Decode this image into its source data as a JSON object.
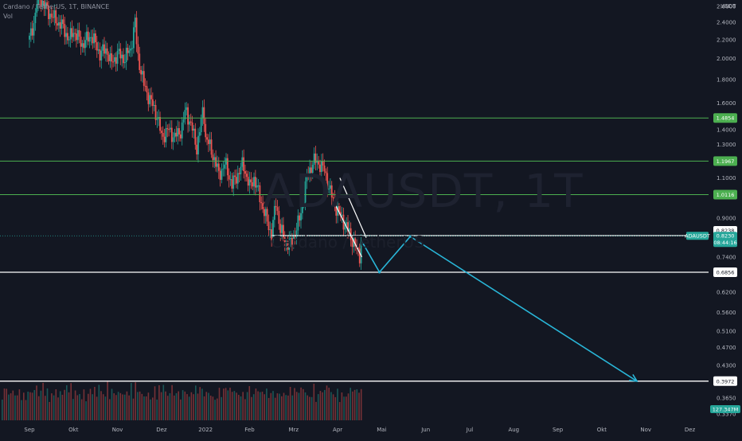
{
  "header": {
    "symbol_line": "Cardano / TetherUS, 1T, BINANCE",
    "volume_label": "Vol"
  },
  "watermark": {
    "ticker": "ADAUSDT, 1T",
    "name": "Cardano / TetherUS"
  },
  "currency_label": "USDT",
  "colors": {
    "background": "#131722",
    "up": "#26a69a",
    "down": "#ef5350",
    "support_line": "#4caf50",
    "projection": "#29b6d8",
    "axis_text": "#b2b5be"
  },
  "chart_data": {
    "type": "candlestick",
    "y_scale": "log",
    "ylim": [
      0.337,
      2.62
    ],
    "price_ticks": [
      "2.6000",
      "2.4000",
      "2.2000",
      "2.0000",
      "1.8000",
      "1.6000",
      "1.4000",
      "1.3000",
      "1.1000",
      "0.9000",
      "0.7400",
      "0.6200",
      "0.5600",
      "0.5100",
      "0.4700",
      "0.4300",
      "0.3650",
      "0.3370"
    ],
    "price_tick_values": [
      2.6,
      2.4,
      2.2,
      2.0,
      1.8,
      1.6,
      1.4,
      1.3,
      1.1,
      0.9,
      0.74,
      0.62,
      0.56,
      0.51,
      0.47,
      0.43,
      0.365,
      0.337
    ],
    "time_labels": [
      "Sep",
      "Okt",
      "Nov",
      "Dez",
      "2022",
      "Feb",
      "Mrz",
      "Apr",
      "Mai",
      "Jun",
      "Jul",
      "Aug",
      "Sep",
      "Okt",
      "Nov",
      "Dez"
    ],
    "time_label_months": [
      0,
      1,
      2,
      3,
      4,
      5,
      6,
      7,
      8,
      9,
      10,
      11,
      12,
      13,
      14,
      15
    ],
    "price_path": [
      [
        0.0,
        2.2
      ],
      [
        0.1,
        2.4
      ],
      [
        0.2,
        2.75
      ],
      [
        0.4,
        2.55
      ],
      [
        0.55,
        2.45
      ],
      [
        0.75,
        2.35
      ],
      [
        0.9,
        2.2
      ],
      [
        1.0,
        2.3
      ],
      [
        1.2,
        2.15
      ],
      [
        1.4,
        2.25
      ],
      [
        1.6,
        2.05
      ],
      [
        1.75,
        2.1
      ],
      [
        1.85,
        1.95
      ],
      [
        2.0,
        2.05
      ],
      [
        2.15,
        2.0
      ],
      [
        2.3,
        2.1
      ],
      [
        2.4,
        2.4
      ],
      [
        2.45,
        2.05
      ],
      [
        2.6,
        1.75
      ],
      [
        2.75,
        1.62
      ],
      [
        2.9,
        1.5
      ],
      [
        3.0,
        1.35
      ],
      [
        3.15,
        1.4
      ],
      [
        3.3,
        1.35
      ],
      [
        3.45,
        1.4
      ],
      [
        3.55,
        1.55
      ],
      [
        3.7,
        1.4
      ],
      [
        3.8,
        1.28
      ],
      [
        3.9,
        1.45
      ],
      [
        3.95,
        1.58
      ],
      [
        4.0,
        1.35
      ],
      [
        4.15,
        1.25
      ],
      [
        4.3,
        1.12
      ],
      [
        4.45,
        1.18
      ],
      [
        4.6,
        1.06
      ],
      [
        4.75,
        1.13
      ],
      [
        4.85,
        1.18
      ],
      [
        5.0,
        1.05
      ],
      [
        5.1,
        1.1
      ],
      [
        5.2,
        1.02
      ],
      [
        5.3,
        0.95
      ],
      [
        5.4,
        0.88
      ],
      [
        5.5,
        0.83
      ],
      [
        5.6,
        0.97
      ],
      [
        5.7,
        0.85
      ],
      [
        5.8,
        0.8
      ],
      [
        5.95,
        0.79
      ],
      [
        6.05,
        0.85
      ],
      [
        6.15,
        0.9
      ],
      [
        6.3,
        1.1
      ],
      [
        6.45,
        1.2
      ],
      [
        6.6,
        1.18
      ],
      [
        6.7,
        1.14
      ],
      [
        6.8,
        1.05
      ],
      [
        6.9,
        0.98
      ],
      [
        7.0,
        0.93
      ],
      [
        7.1,
        0.9
      ],
      [
        7.2,
        0.86
      ],
      [
        7.3,
        0.82
      ],
      [
        7.4,
        0.78
      ],
      [
        7.5,
        0.75
      ],
      [
        7.55,
        0.823
      ]
    ],
    "volume_levels": [
      0.6,
      0.55,
      0.7,
      0.45,
      0.5,
      0.4,
      0.45,
      0.35,
      0.4,
      0.3,
      0.35,
      0.5,
      0.45,
      0.6,
      0.5,
      0.7,
      0.55,
      0.45,
      0.5,
      0.65,
      0.45,
      0.5,
      0.35,
      0.4,
      0.45,
      0.6,
      0.4,
      0.35,
      0.55,
      0.5
    ],
    "horizontal_levels": [
      {
        "label": "1.4854",
        "value": 1.4854,
        "kind": "support"
      },
      {
        "label": "1.1967",
        "value": 1.1967,
        "kind": "support"
      },
      {
        "label": "1.0116",
        "value": 1.0116,
        "kind": "support"
      },
      {
        "label": "0.8238",
        "value": 0.8238,
        "kind": "marker"
      },
      {
        "label": "0.6856",
        "value": 0.6856,
        "kind": "level"
      },
      {
        "label": "0.3972",
        "value": 0.3972,
        "kind": "level"
      }
    ],
    "channel": [
      {
        "from": [
          7.05,
          1.1
        ],
        "to": [
          7.65,
          0.815
        ]
      },
      {
        "from": [
          6.95,
          0.96
        ],
        "to": [
          7.55,
          0.74
        ]
      }
    ],
    "projection_path": [
      [
        7.55,
        0.8
      ],
      [
        7.95,
        0.686
      ],
      [
        8.65,
        0.82
      ],
      [
        13.8,
        0.397
      ]
    ],
    "current": {
      "symbol": "ADAUSDT",
      "price": "0.8230",
      "countdown": "08:44:16",
      "value": 0.823
    },
    "volume_badge": "127.347M"
  }
}
